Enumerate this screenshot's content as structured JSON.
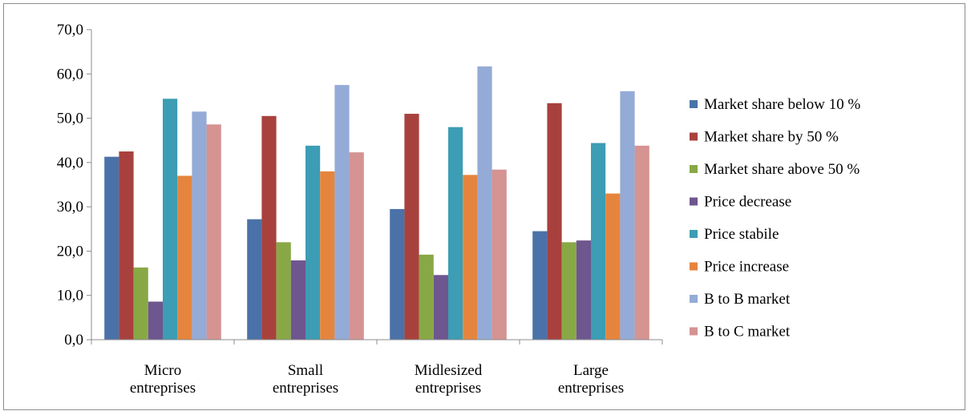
{
  "chart_data": {
    "type": "bar",
    "title": "",
    "xlabel": "",
    "ylabel": "",
    "ylim": [
      0,
      70
    ],
    "yticks": [
      "0,0",
      "10,0",
      "20,0",
      "30,0",
      "40,0",
      "50,0",
      "60,0",
      "70,0"
    ],
    "grid": false,
    "legend_position": "right",
    "categories": [
      [
        "Micro",
        "entreprises"
      ],
      [
        "Small",
        "entreprises"
      ],
      [
        "Midlesized",
        "entreprises"
      ],
      [
        "Large",
        "entreprises"
      ]
    ],
    "series": [
      {
        "name": "Market share below 10 %",
        "color": "#4a72a8",
        "values": [
          41.3,
          27.2,
          29.5,
          24.5
        ]
      },
      {
        "name": "Market share by 50 %",
        "color": "#a8413d",
        "values": [
          42.5,
          50.5,
          51.0,
          53.4
        ]
      },
      {
        "name": "Market share above 50 %",
        "color": "#88a846",
        "values": [
          16.3,
          22.0,
          19.2,
          22.0
        ]
      },
      {
        "name": "Price decrease",
        "color": "#6e568f",
        "values": [
          8.6,
          17.9,
          14.6,
          22.4
        ]
      },
      {
        "name": "Price stabile",
        "color": "#3c9db4",
        "values": [
          54.4,
          43.8,
          48.0,
          44.4
        ]
      },
      {
        "name": "Price increase",
        "color": "#e5853d",
        "values": [
          37.0,
          38.0,
          37.2,
          33.0
        ]
      },
      {
        "name": "B to B market",
        "color": "#93abd6",
        "values": [
          51.5,
          57.5,
          61.7,
          56.1
        ]
      },
      {
        "name": "B to C market",
        "color": "#d59392",
        "values": [
          48.6,
          42.3,
          38.4,
          43.8
        ]
      }
    ]
  }
}
